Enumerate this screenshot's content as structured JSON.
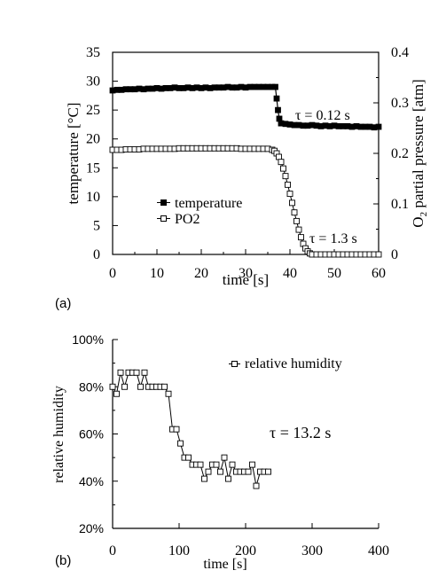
{
  "chart_data": [
    {
      "panel": "(a)",
      "type": "scatter",
      "xlabel": "time [s]",
      "ylabel": "temperature [°C]",
      "y2label": "O2 partial pressure [atm]",
      "y2label_parts": [
        "O",
        "2",
        " partial pressure [atm]"
      ],
      "xlim": [
        0,
        60
      ],
      "ylim": [
        0,
        35
      ],
      "y2lim": [
        0,
        0.4
      ],
      "xticks": [
        "0",
        "10",
        "20",
        "30",
        "40",
        "50",
        "60"
      ],
      "yticks": [
        "0",
        "5",
        "10",
        "15",
        "20",
        "25",
        "30",
        "35"
      ],
      "y2ticks": [
        "0",
        "0.1",
        "0.2",
        "0.3",
        "0.4"
      ],
      "legend": {
        "placement": "left",
        "entries": [
          "temperature",
          "PO2"
        ]
      },
      "annotations": [
        "τ = 0.12 s",
        "τ = 1.3 s"
      ],
      "series": [
        {
          "name": "temperature",
          "marker": "filled-square",
          "axis": "left",
          "points": [
            [
              0,
              28.4
            ],
            [
              1,
              28.5
            ],
            [
              2,
              28.5
            ],
            [
              3,
              28.6
            ],
            [
              4,
              28.6
            ],
            [
              5,
              28.6
            ],
            [
              6,
              28.7
            ],
            [
              7,
              28.6
            ],
            [
              8,
              28.7
            ],
            [
              9,
              28.7
            ],
            [
              10,
              28.8
            ],
            [
              11,
              28.7
            ],
            [
              12,
              28.8
            ],
            [
              13,
              28.8
            ],
            [
              14,
              28.9
            ],
            [
              15,
              28.8
            ],
            [
              16,
              28.8
            ],
            [
              17,
              28.9
            ],
            [
              18,
              28.8
            ],
            [
              19,
              28.9
            ],
            [
              20,
              28.8
            ],
            [
              21,
              28.9
            ],
            [
              22,
              28.8
            ],
            [
              23,
              28.9
            ],
            [
              24,
              28.9
            ],
            [
              25,
              28.9
            ],
            [
              26,
              29.0
            ],
            [
              27,
              28.9
            ],
            [
              28,
              28.9
            ],
            [
              29,
              29.0
            ],
            [
              30,
              28.9
            ],
            [
              31,
              29.0
            ],
            [
              32,
              29.0
            ],
            [
              33,
              29.0
            ],
            [
              34,
              29.0
            ],
            [
              35,
              29.0
            ],
            [
              36,
              29.0
            ],
            [
              36.7,
              29.0
            ],
            [
              37.0,
              27.0
            ],
            [
              37.3,
              25.0
            ],
            [
              37.6,
              23.5
            ],
            [
              38,
              22.7
            ],
            [
              39,
              22.6
            ],
            [
              40,
              22.5
            ],
            [
              41,
              22.4
            ],
            [
              42,
              22.4
            ],
            [
              43,
              22.3
            ],
            [
              44,
              22.3
            ],
            [
              45,
              22.4
            ],
            [
              46,
              22.3
            ],
            [
              47,
              22.2
            ],
            [
              48,
              22.3
            ],
            [
              49,
              22.2
            ],
            [
              50,
              22.3
            ],
            [
              51,
              22.2
            ],
            [
              52,
              22.2
            ],
            [
              53,
              22.2
            ],
            [
              54,
              22.1
            ],
            [
              55,
              22.2
            ],
            [
              56,
              22.1
            ],
            [
              57,
              22.1
            ],
            [
              58,
              22.1
            ],
            [
              59,
              22.0
            ],
            [
              60,
              22.1
            ]
          ]
        },
        {
          "name": "PO2",
          "marker": "open-square",
          "axis": "right",
          "points": [
            [
              0,
              0.207
            ],
            [
              1,
              0.207
            ],
            [
              2,
              0.207
            ],
            [
              3,
              0.208
            ],
            [
              4,
              0.208
            ],
            [
              5,
              0.208
            ],
            [
              6,
              0.208
            ],
            [
              7,
              0.209
            ],
            [
              8,
              0.209
            ],
            [
              9,
              0.209
            ],
            [
              10,
              0.209
            ],
            [
              11,
              0.209
            ],
            [
              12,
              0.209
            ],
            [
              13,
              0.209
            ],
            [
              14,
              0.209
            ],
            [
              15,
              0.21
            ],
            [
              16,
              0.21
            ],
            [
              17,
              0.21
            ],
            [
              18,
              0.21
            ],
            [
              19,
              0.21
            ],
            [
              20,
              0.21
            ],
            [
              21,
              0.21
            ],
            [
              22,
              0.21
            ],
            [
              23,
              0.21
            ],
            [
              24,
              0.21
            ],
            [
              25,
              0.21
            ],
            [
              26,
              0.21
            ],
            [
              27,
              0.21
            ],
            [
              28,
              0.21
            ],
            [
              29,
              0.209
            ],
            [
              30,
              0.209
            ],
            [
              31,
              0.209
            ],
            [
              32,
              0.209
            ],
            [
              33,
              0.209
            ],
            [
              34,
              0.209
            ],
            [
              35,
              0.209
            ],
            [
              36,
              0.207
            ],
            [
              36.5,
              0.205
            ],
            [
              37,
              0.2
            ],
            [
              37.5,
              0.193
            ],
            [
              38,
              0.183
            ],
            [
              38.5,
              0.17
            ],
            [
              39,
              0.155
            ],
            [
              39.5,
              0.138
            ],
            [
              40,
              0.12
            ],
            [
              40.5,
              0.102
            ],
            [
              41,
              0.083
            ],
            [
              41.5,
              0.066
            ],
            [
              42,
              0.049
            ],
            [
              42.5,
              0.034
            ],
            [
              43,
              0.021
            ],
            [
              43.5,
              0.012
            ],
            [
              44,
              0.006
            ],
            [
              44.5,
              0.002
            ],
            [
              45,
              0.0
            ],
            [
              46,
              0.0
            ],
            [
              47,
              0.0
            ],
            [
              48,
              0.0
            ],
            [
              49,
              0.0
            ],
            [
              50,
              0.0
            ],
            [
              51,
              0.0
            ],
            [
              52,
              0.0
            ],
            [
              53,
              0.0
            ],
            [
              54,
              0.0
            ],
            [
              55,
              0.0
            ],
            [
              56,
              0.0
            ],
            [
              57,
              0.0
            ],
            [
              58,
              0.0
            ],
            [
              59,
              0.0
            ],
            [
              60,
              0.0
            ]
          ]
        }
      ]
    },
    {
      "panel": "(b)",
      "type": "line",
      "xlabel": "time [s]",
      "ylabel": "relative humidity",
      "xlim": [
        0,
        400
      ],
      "ylim": [
        20,
        100
      ],
      "xticks": [
        "0",
        "100",
        "200",
        "300",
        "400"
      ],
      "yticks": [
        "20%",
        "40%",
        "60%",
        "80%",
        "100%"
      ],
      "legend": {
        "placement": "top-right",
        "entries": [
          "relative humidity"
        ]
      },
      "annotations": [
        "τ = 13.2 s"
      ],
      "series": [
        {
          "name": "relative humidity",
          "marker": "open-square",
          "points": [
            [
              0,
              80
            ],
            [
              6,
              77
            ],
            [
              12,
              86
            ],
            [
              18,
              80
            ],
            [
              24,
              86
            ],
            [
              30,
              86
            ],
            [
              36,
              86
            ],
            [
              42,
              80
            ],
            [
              48,
              86
            ],
            [
              54,
              80
            ],
            [
              60,
              80
            ],
            [
              66,
              80
            ],
            [
              72,
              80
            ],
            [
              78,
              80
            ],
            [
              84,
              77
            ],
            [
              90,
              62
            ],
            [
              96,
              62
            ],
            [
              102,
              56
            ],
            [
              108,
              50
            ],
            [
              114,
              50
            ],
            [
              120,
              47
            ],
            [
              126,
              47
            ],
            [
              132,
              47
            ],
            [
              138,
              41
            ],
            [
              144,
              44
            ],
            [
              150,
              47
            ],
            [
              156,
              47
            ],
            [
              162,
              44
            ],
            [
              168,
              50
            ],
            [
              174,
              41
            ],
            [
              180,
              47
            ],
            [
              186,
              44
            ],
            [
              192,
              44
            ],
            [
              198,
              44
            ],
            [
              204,
              44
            ],
            [
              210,
              47
            ],
            [
              216,
              38
            ],
            [
              222,
              44
            ],
            [
              228,
              44
            ],
            [
              234,
              44
            ]
          ]
        }
      ]
    }
  ]
}
